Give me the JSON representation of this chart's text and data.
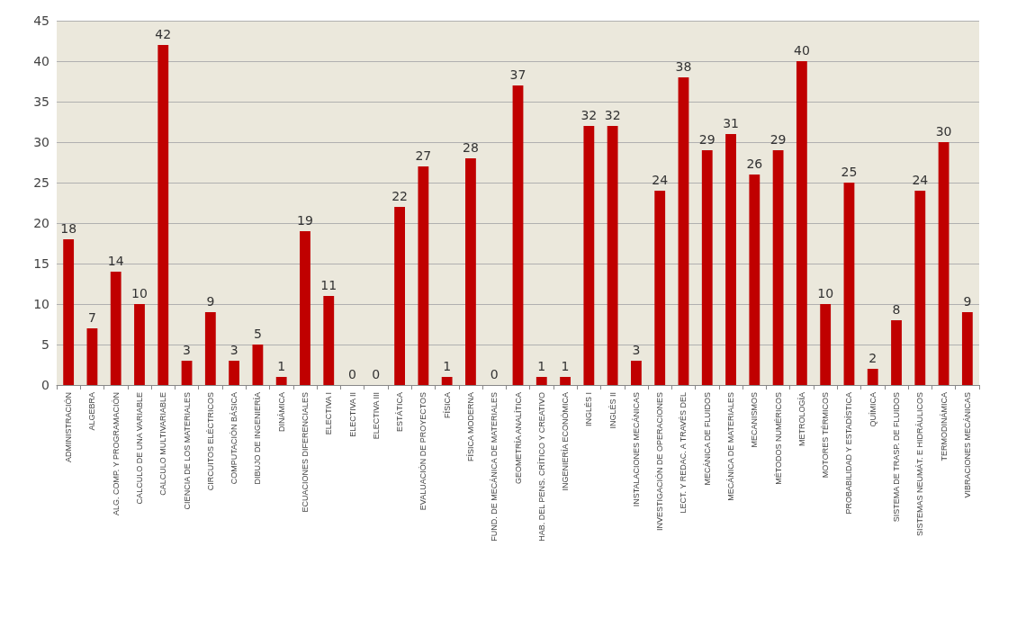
{
  "chart_data": {
    "type": "bar",
    "categories": [
      "ADMINISTRACIÓN",
      "ALGEBRA",
      "ALG. COMP. Y PROGRAMACIÓN",
      "CALCULO DE UNA VARIABLE",
      "CALCULO MULTIVARIABLE",
      "CIENCIA DE LOS MATERIALES",
      "CIRCUITOS ELÉCTRICOS",
      "COMPUTACIÓN BÁSICA",
      "DIBUJO DE INGENIERÍA",
      "DINÁMICA",
      "ECUACIONES DIFERENCIALES",
      "ELECTIVA I",
      "ELECTIVA II",
      "ELECTIVA III",
      "ESTÁTICA",
      "EVALUACIÓN DE PROYECTOS",
      "FÍSICA",
      "FÍSICA MODERNA",
      "FUND. DE MECÁNICA DE MATERIALES",
      "GEOMETRÍA ANALÍTICA",
      "HAB. DEL PENS. CRÍTICO Y CREATIVO",
      "INGENIERÍA ECONÓMICA",
      "INGLÉS I",
      "INGLÉS II",
      "INSTALACIONES MECÁNICAS",
      "INVESTIGACIÓN DE OPERACIONES",
      "LECT. Y REDAC. A TRAVÉS DEL",
      "MECÁNICA DE FLUIDOS",
      "MECÁNICA DE MATERIALES",
      "MECANISMOS",
      "MÉTODOS NUMÉRICOS",
      "METROLOGÍA",
      "MOTORES TÉRMICOS",
      "PROBABILIDAD Y ESTADÍSTICA",
      "QUÍMICA",
      "SISTEMA DE TRASP. DE FLUIDOS",
      "SISTEMAS NEUMÁT. E HIDRÁULICOS",
      "TERMODINÁMICA",
      "VIBRACIONES MECÁNICAS"
    ],
    "values": [
      18,
      7,
      14,
      10,
      42,
      3,
      9,
      3,
      5,
      1,
      19,
      11,
      0,
      0,
      22,
      27,
      1,
      28,
      0,
      37,
      1,
      1,
      32,
      32,
      3,
      24,
      38,
      29,
      31,
      26,
      29,
      40,
      10,
      25,
      2,
      8,
      24,
      30,
      9
    ],
    "color": "#c00000",
    "ylim": [
      0,
      45
    ],
    "yticks": [
      0,
      5,
      10,
      15,
      20,
      25,
      30,
      35,
      40,
      45
    ],
    "grid": "y",
    "data_labels": true
  }
}
